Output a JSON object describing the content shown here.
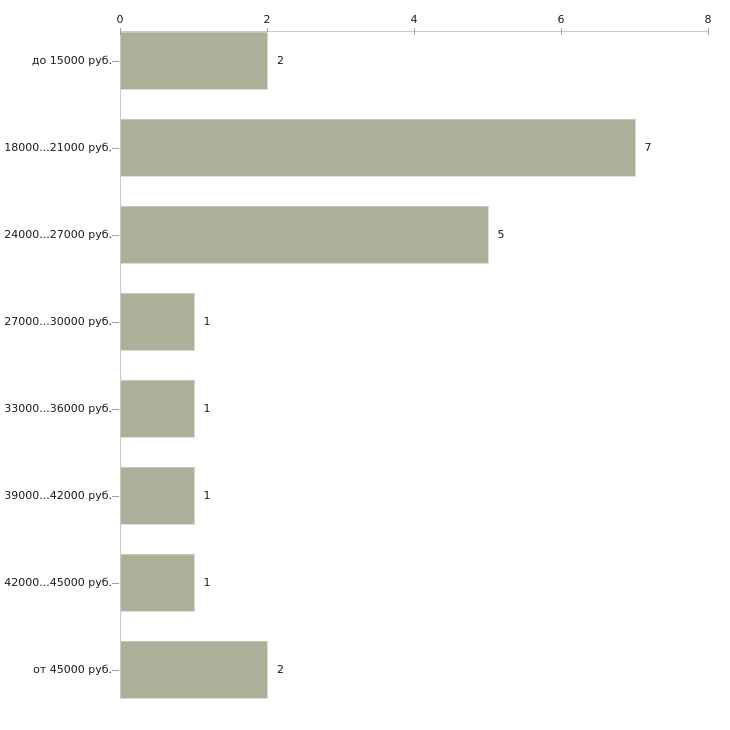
{
  "page": {
    "background": "#ffffff"
  },
  "chart_data": {
    "type": "bar",
    "orientation": "horizontal",
    "categories": [
      "до 15000 руб.",
      "18000...21000 руб.",
      "24000...27000 руб.",
      "27000...30000 руб.",
      "33000...36000 руб.",
      "39000...42000 руб.",
      "42000...45000 руб.",
      "от 45000 руб."
    ],
    "values": [
      2,
      7,
      5,
      1,
      1,
      1,
      1,
      2
    ],
    "x_ticks": [
      "0",
      "2",
      "4",
      "6",
      "8"
    ],
    "xlim": [
      0,
      8
    ],
    "axis_position": "top",
    "grid": false,
    "legend": false,
    "bar_color": "#abb199",
    "bar_border_color": "#c6c6bd",
    "axis_line_color": "#c9c9c9",
    "tick_mark_color": "#a6a676",
    "label_color": "#1a1a1a"
  }
}
